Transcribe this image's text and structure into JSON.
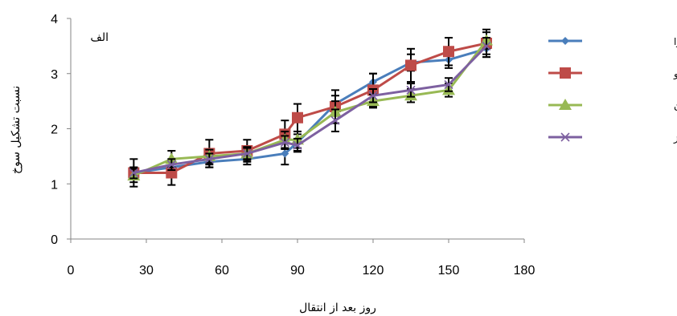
{
  "chart_data": {
    "type": "line",
    "panel_label": "الف",
    "xlabel": "روز بعد از انتقال",
    "ylabel": "نسبت تشکیل سوخ",
    "xlim": [
      0,
      180
    ],
    "ylim": [
      0,
      4
    ],
    "x_ticks": [
      0,
      30,
      60,
      90,
      120,
      150,
      180
    ],
    "y_ticks": [
      0,
      1,
      2,
      3,
      4
    ],
    "grid": false,
    "legend_position": "right",
    "x": [
      25,
      40,
      55,
      70,
      85,
      90,
      105,
      120,
      135,
      150,
      165
    ],
    "series": [
      {
        "name": "پریماورا",
        "color": "#4a7ebb",
        "marker": "diamond",
        "values": [
          1.2,
          1.3,
          1.4,
          1.45,
          1.55,
          1.75,
          2.45,
          2.85,
          3.2,
          3.25,
          3.45
        ],
        "errors": [
          0.1,
          0.1,
          0.1,
          0.1,
          0.2,
          0.15,
          0.15,
          0.15,
          0.15,
          0.15,
          0.15
        ]
      },
      {
        "name": "نگزاس ارلی گرانو",
        "color": "#be4b48",
        "marker": "square",
        "values": [
          1.2,
          1.2,
          1.55,
          1.6,
          1.9,
          2.2,
          2.4,
          2.7,
          3.15,
          3.4,
          3.55
        ],
        "errors": [
          0.25,
          0.22,
          0.25,
          0.2,
          0.25,
          0.25,
          0.3,
          0.3,
          0.3,
          0.25,
          0.25
        ]
      },
      {
        "name": "اصلاح شده بهبهان",
        "color": "#98b954",
        "marker": "triangle",
        "values": [
          1.15,
          1.45,
          1.5,
          1.55,
          1.8,
          1.8,
          2.3,
          2.5,
          2.6,
          2.7,
          3.6
        ],
        "errors": [
          0.12,
          0.15,
          0.12,
          0.12,
          0.15,
          0.15,
          0.2,
          0.12,
          0.12,
          0.12,
          0.15
        ]
      },
      {
        "name": "محلی رامهرمز",
        "color": "#7d60a0",
        "marker": "x",
        "values": [
          1.2,
          1.35,
          1.45,
          1.55,
          1.75,
          1.7,
          2.15,
          2.6,
          2.7,
          2.8,
          3.5
        ],
        "errors": [
          0.1,
          0.1,
          0.1,
          0.1,
          0.12,
          0.12,
          0.2,
          0.12,
          0.12,
          0.12,
          0.15
        ]
      }
    ]
  }
}
